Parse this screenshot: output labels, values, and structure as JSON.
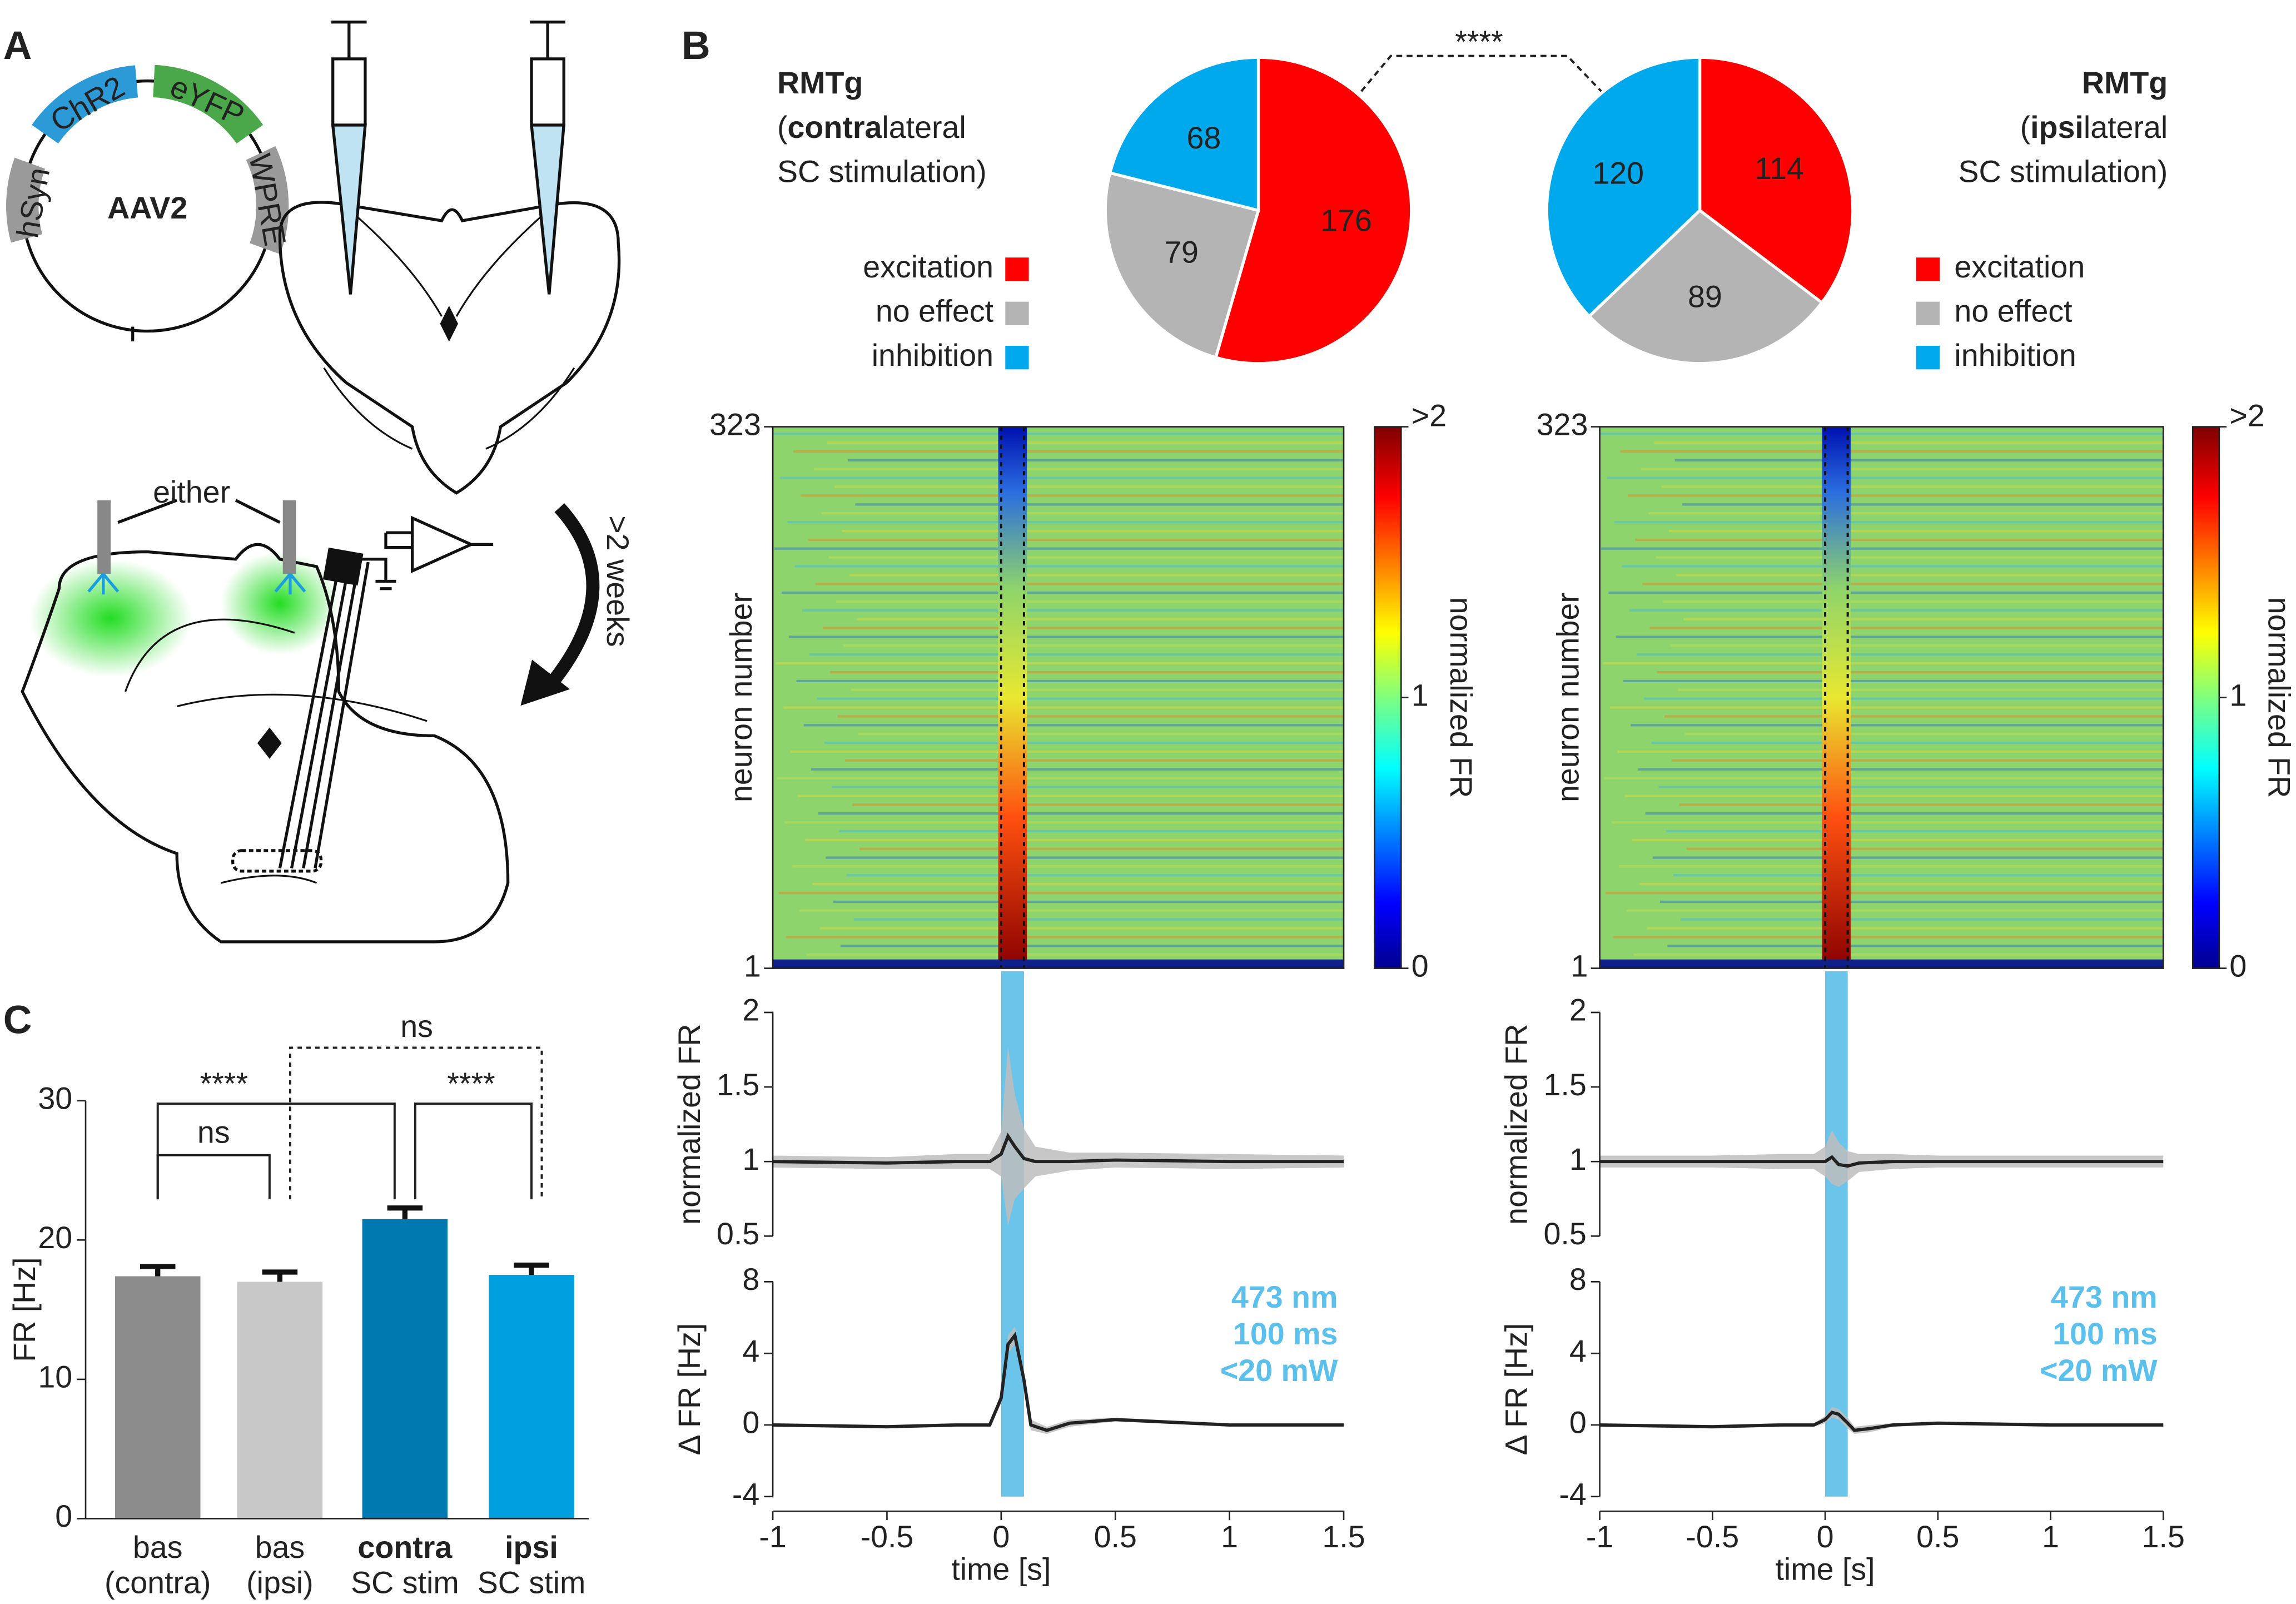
{
  "panels": [
    "A",
    "B",
    "C"
  ],
  "diagram": {
    "plasmid": "AAV2",
    "elements": [
      "hSyn",
      "ChR2",
      "eYFP",
      "WPRE"
    ],
    "either": "either",
    "wait": ">2 weeks"
  },
  "pie_significance": "****",
  "chart_data": [
    {
      "type": "pie",
      "title": "RMTg",
      "subtitle": [
        [
          "(",
          "contra",
          "lateral"
        ],
        [
          "SC stimulation)"
        ]
      ],
      "categories": [
        "excitation",
        "no effect",
        "inhibition"
      ],
      "values": [
        176,
        79,
        68
      ],
      "colors": [
        "#ff0000",
        "#b4b4b4",
        "#00a8ec"
      ]
    },
    {
      "type": "pie",
      "title": "RMTg",
      "subtitle": [
        [
          "(",
          "ipsi",
          "lateral"
        ],
        [
          "SC stimulation)"
        ]
      ],
      "categories": [
        "excitation",
        "no effect",
        "inhibition"
      ],
      "values": [
        114,
        89,
        120
      ],
      "colors": [
        "#ff0000",
        "#b4b4b4",
        "#00a8ec"
      ]
    },
    {
      "type": "heatmap",
      "ylabel": "neuron number",
      "ylim": [
        1,
        323
      ],
      "yticks": [
        1,
        323
      ],
      "xlim": [
        -1,
        1.5
      ],
      "markers": [
        0,
        0.1
      ],
      "colorbar": {
        "lim": [
          0,
          2
        ],
        "ticks": [
          0,
          1,
          {
            "value": 2,
            "label": ">2"
          }
        ],
        "label": "normalized FR"
      }
    },
    {
      "type": "heatmap",
      "ylabel": "neuron number",
      "ylim": [
        1,
        323
      ],
      "yticks": [
        1,
        323
      ],
      "xlim": [
        -1,
        1.5
      ],
      "markers": [
        0,
        0.1
      ],
      "colorbar": {
        "lim": [
          0,
          2
        ],
        "ticks": [
          0,
          1,
          {
            "value": 2,
            "label": ">2"
          }
        ],
        "label": "normalized FR"
      }
    },
    {
      "type": "line",
      "ylabel": "normalized FR",
      "xlim": [
        -1,
        1.5
      ],
      "ylim": [
        0.5,
        2
      ],
      "yticks": [
        0.5,
        1,
        1.5,
        2
      ],
      "shade": [
        0,
        0.1
      ],
      "shade_color": "#5bbfe8",
      "x": [
        -1,
        -0.5,
        -0.2,
        -0.05,
        0,
        0.03,
        0.06,
        0.1,
        0.15,
        0.3,
        0.5,
        1,
        1.5
      ],
      "series": [
        {
          "values": [
            1,
            0.99,
            1,
            1,
            1.05,
            1.17,
            1.1,
            1.02,
            1,
            1,
            1.01,
            1,
            1
          ],
          "errors": [
            0.04,
            0.04,
            0.05,
            0.05,
            0.15,
            0.6,
            0.35,
            0.2,
            0.1,
            0.06,
            0.05,
            0.05,
            0.04
          ],
          "color": "#222222",
          "band_color": "#bdbdbd"
        }
      ]
    },
    {
      "type": "line",
      "ylabel": "normalized FR",
      "xlim": [
        -1,
        1.5
      ],
      "ylim": [
        0.5,
        2
      ],
      "yticks": [
        0.5,
        1,
        1.5,
        2
      ],
      "shade": [
        0,
        0.1
      ],
      "shade_color": "#5bbfe8",
      "x": [
        -1,
        -0.5,
        -0.2,
        -0.05,
        0,
        0.03,
        0.06,
        0.1,
        0.15,
        0.3,
        0.5,
        1,
        1.5
      ],
      "series": [
        {
          "values": [
            1,
            1,
            1,
            1,
            1,
            1.03,
            0.98,
            0.97,
            0.99,
            1,
            1,
            1,
            1
          ],
          "errors": [
            0.04,
            0.04,
            0.05,
            0.05,
            0.1,
            0.18,
            0.15,
            0.1,
            0.06,
            0.05,
            0.04,
            0.04,
            0.04
          ],
          "color": "#222222",
          "band_color": "#bdbdbd"
        }
      ]
    },
    {
      "type": "line",
      "ylabel": "Δ FR [Hz]",
      "xlabel": "time [s]",
      "xlim": [
        -1,
        1.5
      ],
      "xticks": [
        -1,
        -0.5,
        0,
        0.5,
        1,
        1.5
      ],
      "ylim": [
        -4,
        8
      ],
      "yticks": [
        -4,
        0,
        4,
        8
      ],
      "shade": [
        0,
        0.1
      ],
      "shade_color": "#5bbfe8",
      "annotation": [
        "473 nm",
        "100 ms",
        "<20 mW"
      ],
      "annotation_color": "#5bc0eb",
      "x": [
        -1,
        -0.5,
        -0.2,
        -0.05,
        0,
        0.03,
        0.06,
        0.1,
        0.13,
        0.2,
        0.3,
        0.5,
        1,
        1.5
      ],
      "series": [
        {
          "values": [
            0,
            -0.1,
            0,
            0,
            1.5,
            4.5,
            5,
            2.5,
            0,
            -0.3,
            0.1,
            0.3,
            0,
            0
          ],
          "errors": [
            0.1,
            0.1,
            0.1,
            0.1,
            0.3,
            0.5,
            0.5,
            0.4,
            0.3,
            0.2,
            0.2,
            0.1,
            0.1,
            0.1
          ],
          "color": "#222222",
          "band_color": "#bdbdbd"
        }
      ]
    },
    {
      "type": "line",
      "ylabel": "Δ FR [Hz]",
      "xlabel": "time [s]",
      "xlim": [
        -1,
        1.5
      ],
      "xticks": [
        -1,
        -0.5,
        0,
        0.5,
        1,
        1.5
      ],
      "ylim": [
        -4,
        8
      ],
      "yticks": [
        -4,
        0,
        4,
        8
      ],
      "shade": [
        0,
        0.1
      ],
      "shade_color": "#5bbfe8",
      "annotation": [
        "473 nm",
        "100 ms",
        "<20 mW"
      ],
      "annotation_color": "#5bc0eb",
      "x": [
        -1,
        -0.5,
        -0.2,
        -0.05,
        0,
        0.03,
        0.06,
        0.1,
        0.13,
        0.2,
        0.3,
        0.5,
        1,
        1.5
      ],
      "series": [
        {
          "values": [
            0,
            -0.1,
            0,
            0,
            0.3,
            0.7,
            0.6,
            0.1,
            -0.3,
            -0.2,
            0,
            0.1,
            0,
            0
          ],
          "errors": [
            0.1,
            0.1,
            0.1,
            0.1,
            0.2,
            0.3,
            0.3,
            0.3,
            0.2,
            0.2,
            0.1,
            0.1,
            0.1,
            0.1
          ],
          "color": "#222222",
          "band_color": "#bdbdbd"
        }
      ]
    },
    {
      "type": "bar",
      "ylabel": "FR [Hz]",
      "categories": [
        [
          "bas",
          "(contra)"
        ],
        [
          "bas",
          "(ipsi)"
        ],
        [
          "contra",
          "SC stim"
        ],
        [
          "ipsi",
          "SC stim"
        ]
      ],
      "values": [
        17.4,
        17.0,
        21.5,
        17.5
      ],
      "errors": [
        0.7,
        0.7,
        0.8,
        0.7
      ],
      "colors": [
        "#8c8c8c",
        "#c8c8c8",
        "#0079b0",
        "#00a0e0"
      ],
      "ylim": [
        0,
        30
      ],
      "yticks": [
        0,
        10,
        20,
        30
      ],
      "significance": [
        "ns",
        "****",
        "****",
        "ns"
      ]
    }
  ]
}
